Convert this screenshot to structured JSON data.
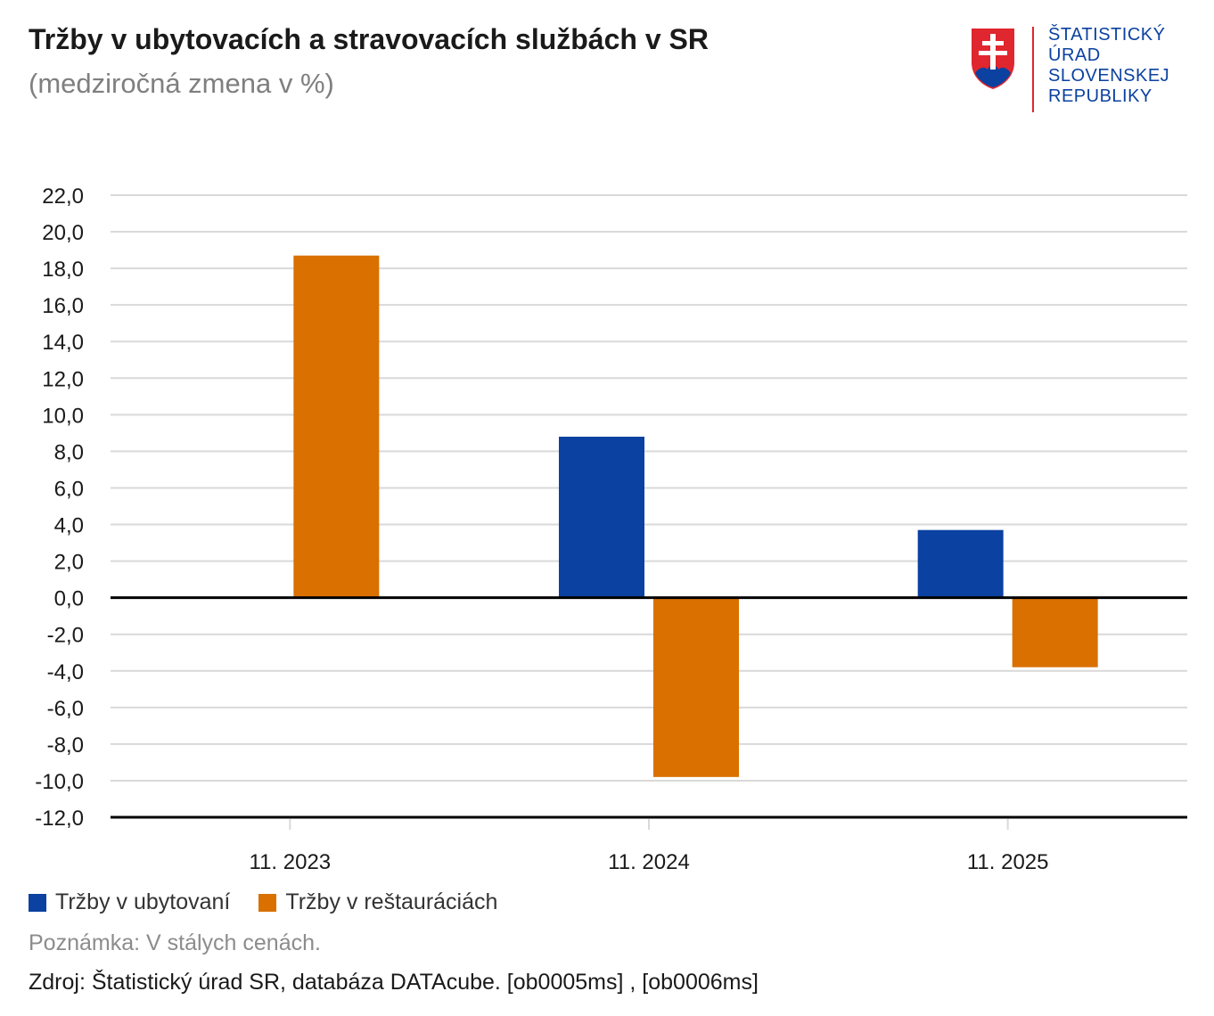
{
  "header": {
    "title": "Tržby v ubytovacích a stravovacích službách v SR",
    "subtitle": "(medziročná zmena v %)"
  },
  "logo": {
    "line1": "ŠTATISTICKÝ",
    "line2": "ÚRAD",
    "line3": "SLOVENSKEJ",
    "line4": "REPUBLIKY",
    "emblem_icon": "slovak-coat-of-arms-icon"
  },
  "colors": {
    "series1": "#0b41a0",
    "series2": "#d97000",
    "grid": "#d9d9d9",
    "axis": "#000000"
  },
  "chart_data": {
    "type": "bar",
    "title": "Tržby v ubytovacích a stravovacích službách v SR",
    "subtitle": "(medziročná zmena v %)",
    "categories": [
      "11. 2023",
      "11. 2024",
      "11. 2025"
    ],
    "series": [
      {
        "name": "Tržby v ubytovaní",
        "values": [
          null,
          8.8,
          3.7
        ]
      },
      {
        "name": "Tržby v reštauráciách",
        "values": [
          18.7,
          -9.8,
          -3.8
        ]
      }
    ],
    "ylim": [
      -12,
      22
    ],
    "ytick_step": 2,
    "ytick_labels": [
      "22,0",
      "20,0",
      "18,0",
      "16,0",
      "14,0",
      "12,0",
      "10,0",
      "8,0",
      "6,0",
      "4,0",
      "2,0",
      "0,0",
      "-2,0",
      "-4,0",
      "-6,0",
      "-8,0",
      "-10,0",
      "-12,0"
    ],
    "xlabel": "",
    "ylabel": "",
    "grid": true,
    "legend_position": "bottom-left"
  },
  "footer": {
    "note": "Poznámka: V stálych cenách.",
    "source": "Zdroj: Štatistický úrad SR, databáza DATAcube. [ob0005ms] , [ob0006ms]"
  }
}
